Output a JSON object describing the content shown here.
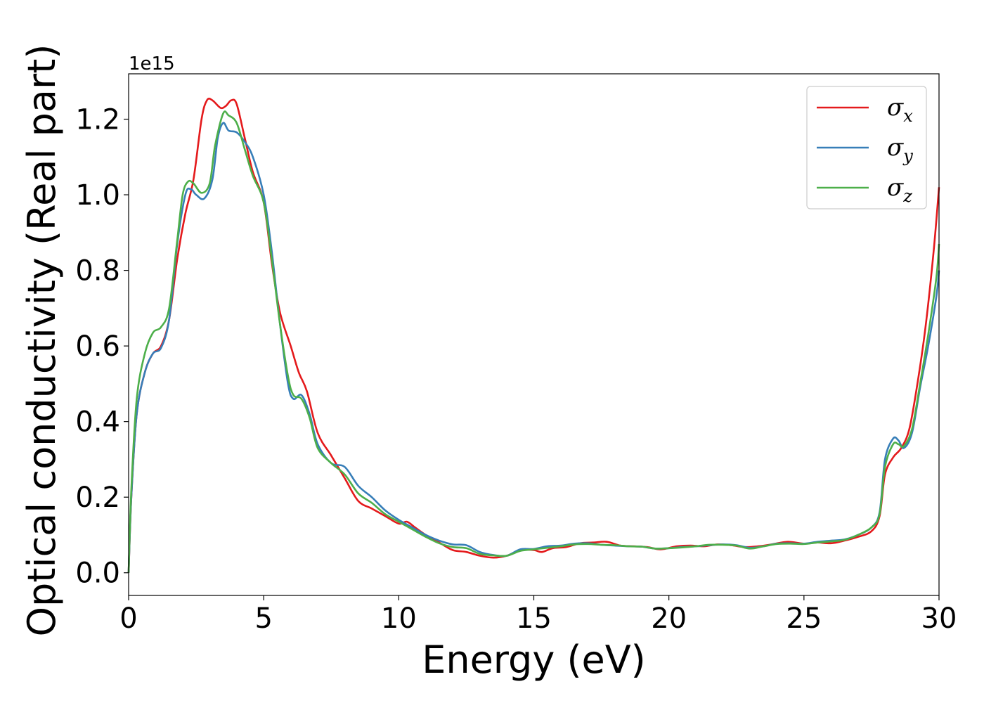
{
  "chart_data": {
    "type": "line",
    "title": "",
    "xlabel": "Energy (eV)",
    "ylabel": "Optical conductivity (Real part)",
    "y_offset_label": "1e15",
    "y_scale_factor": 1000000000000000.0,
    "xlim": [
      0,
      30
    ],
    "ylim": [
      -0.06,
      1.32
    ],
    "x_ticks": [
      0,
      5,
      10,
      15,
      20,
      25,
      30
    ],
    "x_tick_labels": [
      "0",
      "5",
      "10",
      "15",
      "20",
      "25",
      "30"
    ],
    "y_ticks": [
      0.0,
      0.2,
      0.4,
      0.6,
      0.8,
      1.0,
      1.2
    ],
    "y_tick_labels": [
      "0.0",
      "0.2",
      "0.4",
      "0.6",
      "0.8",
      "1.0",
      "1.2"
    ],
    "grid": false,
    "legend_position": "top-right",
    "series": [
      {
        "name": "σx",
        "symbol": "σ",
        "subscript": "x",
        "color": "#e41a1c",
        "points": [
          [
            0,
            0.0
          ],
          [
            0.1,
            0.2
          ],
          [
            0.3,
            0.42
          ],
          [
            0.6,
            0.53
          ],
          [
            0.9,
            0.58
          ],
          [
            1.2,
            0.6
          ],
          [
            1.5,
            0.67
          ],
          [
            1.8,
            0.83
          ],
          [
            2.1,
            0.95
          ],
          [
            2.4,
            1.04
          ],
          [
            2.7,
            1.2
          ],
          [
            2.9,
            1.25
          ],
          [
            3.1,
            1.25
          ],
          [
            3.4,
            1.23
          ],
          [
            3.6,
            1.235
          ],
          [
            3.8,
            1.25
          ],
          [
            4.0,
            1.24
          ],
          [
            4.3,
            1.15
          ],
          [
            4.6,
            1.06
          ],
          [
            5.0,
            0.98
          ],
          [
            5.3,
            0.82
          ],
          [
            5.6,
            0.69
          ],
          [
            6.0,
            0.6
          ],
          [
            6.3,
            0.53
          ],
          [
            6.6,
            0.48
          ],
          [
            7.0,
            0.37
          ],
          [
            7.5,
            0.31
          ],
          [
            8.0,
            0.25
          ],
          [
            8.5,
            0.19
          ],
          [
            9.0,
            0.17
          ],
          [
            9.5,
            0.15
          ],
          [
            10.0,
            0.13
          ],
          [
            10.3,
            0.135
          ],
          [
            10.6,
            0.12
          ],
          [
            11.0,
            0.1
          ],
          [
            11.5,
            0.08
          ],
          [
            12.0,
            0.06
          ],
          [
            12.5,
            0.055
          ],
          [
            13.0,
            0.045
          ],
          [
            13.5,
            0.04
          ],
          [
            14.0,
            0.045
          ],
          [
            14.5,
            0.06
          ],
          [
            15.0,
            0.06
          ],
          [
            15.3,
            0.055
          ],
          [
            15.7,
            0.065
          ],
          [
            16.2,
            0.068
          ],
          [
            16.7,
            0.078
          ],
          [
            17.2,
            0.08
          ],
          [
            17.7,
            0.082
          ],
          [
            18.2,
            0.072
          ],
          [
            18.7,
            0.07
          ],
          [
            19.2,
            0.068
          ],
          [
            19.7,
            0.062
          ],
          [
            20.3,
            0.07
          ],
          [
            20.8,
            0.072
          ],
          [
            21.3,
            0.07
          ],
          [
            21.8,
            0.075
          ],
          [
            22.3,
            0.073
          ],
          [
            22.8,
            0.068
          ],
          [
            23.3,
            0.07
          ],
          [
            23.8,
            0.075
          ],
          [
            24.4,
            0.082
          ],
          [
            25.0,
            0.077
          ],
          [
            25.5,
            0.08
          ],
          [
            26.0,
            0.078
          ],
          [
            26.5,
            0.085
          ],
          [
            27.0,
            0.095
          ],
          [
            27.5,
            0.11
          ],
          [
            27.8,
            0.15
          ],
          [
            28.0,
            0.26
          ],
          [
            28.3,
            0.305
          ],
          [
            28.6,
            0.33
          ],
          [
            28.9,
            0.38
          ],
          [
            29.2,
            0.5
          ],
          [
            29.5,
            0.65
          ],
          [
            29.8,
            0.85
          ],
          [
            30.0,
            1.02
          ]
        ]
      },
      {
        "name": "σy",
        "symbol": "σ",
        "subscript": "y",
        "color": "#377eb8",
        "points": [
          [
            0,
            0.0
          ],
          [
            0.1,
            0.2
          ],
          [
            0.3,
            0.42
          ],
          [
            0.6,
            0.53
          ],
          [
            0.9,
            0.58
          ],
          [
            1.2,
            0.595
          ],
          [
            1.5,
            0.67
          ],
          [
            1.8,
            0.87
          ],
          [
            2.1,
            1.0
          ],
          [
            2.3,
            1.015
          ],
          [
            2.5,
            1.0
          ],
          [
            2.8,
            0.99
          ],
          [
            3.1,
            1.04
          ],
          [
            3.3,
            1.15
          ],
          [
            3.5,
            1.19
          ],
          [
            3.7,
            1.17
          ],
          [
            4.0,
            1.165
          ],
          [
            4.3,
            1.14
          ],
          [
            4.6,
            1.1
          ],
          [
            5.0,
            1.0
          ],
          [
            5.3,
            0.85
          ],
          [
            5.6,
            0.66
          ],
          [
            5.9,
            0.5
          ],
          [
            6.1,
            0.46
          ],
          [
            6.4,
            0.47
          ],
          [
            6.7,
            0.42
          ],
          [
            7.0,
            0.34
          ],
          [
            7.5,
            0.29
          ],
          [
            8.0,
            0.28
          ],
          [
            8.5,
            0.23
          ],
          [
            9.0,
            0.2
          ],
          [
            9.5,
            0.165
          ],
          [
            10.0,
            0.14
          ],
          [
            10.5,
            0.12
          ],
          [
            11.0,
            0.1
          ],
          [
            11.5,
            0.085
          ],
          [
            12.0,
            0.075
          ],
          [
            12.5,
            0.073
          ],
          [
            13.0,
            0.055
          ],
          [
            13.5,
            0.047
          ],
          [
            14.0,
            0.045
          ],
          [
            14.5,
            0.062
          ],
          [
            15.0,
            0.063
          ],
          [
            15.5,
            0.07
          ],
          [
            16.0,
            0.072
          ],
          [
            16.5,
            0.077
          ],
          [
            17.0,
            0.078
          ],
          [
            17.5,
            0.074
          ],
          [
            18.0,
            0.072
          ],
          [
            18.5,
            0.07
          ],
          [
            19.0,
            0.069
          ],
          [
            19.5,
            0.064
          ],
          [
            20.0,
            0.065
          ],
          [
            20.5,
            0.068
          ],
          [
            21.0,
            0.07
          ],
          [
            21.5,
            0.073
          ],
          [
            22.0,
            0.075
          ],
          [
            22.5,
            0.073
          ],
          [
            23.0,
            0.066
          ],
          [
            23.5,
            0.07
          ],
          [
            24.0,
            0.077
          ],
          [
            24.5,
            0.078
          ],
          [
            25.0,
            0.077
          ],
          [
            25.5,
            0.082
          ],
          [
            26.0,
            0.085
          ],
          [
            26.5,
            0.088
          ],
          [
            27.0,
            0.1
          ],
          [
            27.5,
            0.12
          ],
          [
            27.8,
            0.16
          ],
          [
            28.0,
            0.3
          ],
          [
            28.3,
            0.355
          ],
          [
            28.5,
            0.35
          ],
          [
            28.7,
            0.33
          ],
          [
            29.0,
            0.37
          ],
          [
            29.3,
            0.49
          ],
          [
            29.6,
            0.6
          ],
          [
            29.9,
            0.73
          ],
          [
            30.0,
            0.8
          ]
        ]
      },
      {
        "name": "σz",
        "symbol": "σ",
        "subscript": "z",
        "color": "#4daf4a",
        "points": [
          [
            0,
            0.0
          ],
          [
            0.1,
            0.22
          ],
          [
            0.3,
            0.46
          ],
          [
            0.6,
            0.58
          ],
          [
            0.9,
            0.635
          ],
          [
            1.2,
            0.65
          ],
          [
            1.5,
            0.7
          ],
          [
            1.8,
            0.88
          ],
          [
            2.0,
            1.0
          ],
          [
            2.2,
            1.035
          ],
          [
            2.4,
            1.03
          ],
          [
            2.7,
            1.005
          ],
          [
            3.0,
            1.03
          ],
          [
            3.2,
            1.13
          ],
          [
            3.5,
            1.215
          ],
          [
            3.7,
            1.21
          ],
          [
            4.0,
            1.19
          ],
          [
            4.3,
            1.12
          ],
          [
            4.6,
            1.05
          ],
          [
            5.0,
            0.98
          ],
          [
            5.3,
            0.83
          ],
          [
            5.6,
            0.66
          ],
          [
            5.9,
            0.52
          ],
          [
            6.1,
            0.47
          ],
          [
            6.4,
            0.46
          ],
          [
            6.7,
            0.41
          ],
          [
            7.0,
            0.33
          ],
          [
            7.5,
            0.29
          ],
          [
            8.0,
            0.26
          ],
          [
            8.5,
            0.21
          ],
          [
            9.0,
            0.185
          ],
          [
            9.5,
            0.155
          ],
          [
            10.0,
            0.135
          ],
          [
            10.5,
            0.115
          ],
          [
            11.0,
            0.095
          ],
          [
            11.5,
            0.078
          ],
          [
            12.0,
            0.068
          ],
          [
            12.5,
            0.065
          ],
          [
            13.0,
            0.05
          ],
          [
            13.5,
            0.046
          ],
          [
            14.0,
            0.045
          ],
          [
            14.5,
            0.058
          ],
          [
            15.0,
            0.062
          ],
          [
            15.5,
            0.066
          ],
          [
            16.0,
            0.07
          ],
          [
            16.5,
            0.075
          ],
          [
            17.0,
            0.076
          ],
          [
            17.5,
            0.074
          ],
          [
            18.0,
            0.073
          ],
          [
            18.5,
            0.07
          ],
          [
            19.0,
            0.069
          ],
          [
            19.5,
            0.064
          ],
          [
            20.0,
            0.065
          ],
          [
            20.5,
            0.067
          ],
          [
            21.0,
            0.07
          ],
          [
            21.5,
            0.074
          ],
          [
            22.0,
            0.074
          ],
          [
            22.5,
            0.072
          ],
          [
            23.0,
            0.064
          ],
          [
            23.5,
            0.07
          ],
          [
            24.0,
            0.076
          ],
          [
            24.5,
            0.077
          ],
          [
            25.0,
            0.076
          ],
          [
            25.5,
            0.08
          ],
          [
            26.0,
            0.083
          ],
          [
            26.5,
            0.087
          ],
          [
            27.0,
            0.1
          ],
          [
            27.5,
            0.12
          ],
          [
            27.8,
            0.155
          ],
          [
            28.0,
            0.28
          ],
          [
            28.3,
            0.34
          ],
          [
            28.5,
            0.34
          ],
          [
            28.7,
            0.335
          ],
          [
            29.0,
            0.38
          ],
          [
            29.3,
            0.5
          ],
          [
            29.6,
            0.63
          ],
          [
            29.9,
            0.78
          ],
          [
            30.0,
            0.87
          ]
        ]
      }
    ]
  }
}
